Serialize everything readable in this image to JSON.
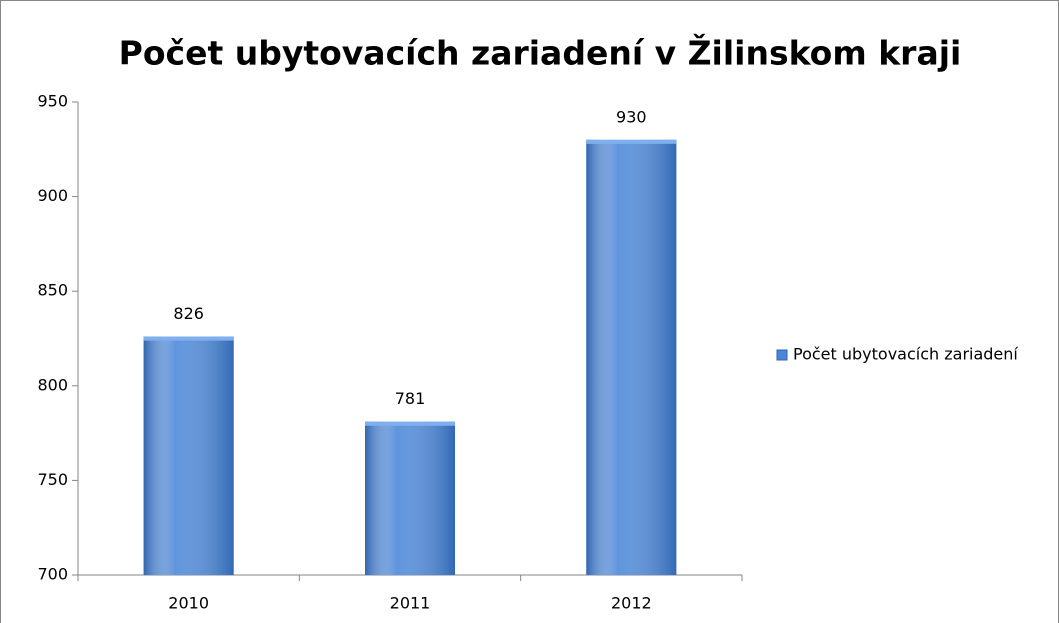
{
  "chart_data": {
    "type": "bar",
    "title": "Počet ubytovacích zariadení v Žilinskom kraji",
    "categories": [
      "2010",
      "2011",
      "2012"
    ],
    "series": [
      {
        "name": "Počet ubytovacích zariadení",
        "color": "#4a86d8",
        "values": [
          826,
          781,
          930
        ]
      }
    ],
    "ylim": [
      700,
      950
    ],
    "yticks": [
      700,
      750,
      800,
      850,
      900,
      950
    ],
    "grid": false,
    "legend": "right"
  }
}
